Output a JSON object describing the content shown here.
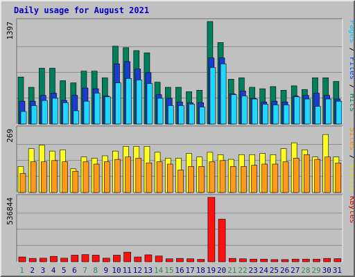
{
  "chart_data": {
    "type": "bar",
    "title": "Daily usage for August 2021",
    "title_color": "#0000c0",
    "categories": [
      "1",
      "2",
      "3",
      "4",
      "5",
      "6",
      "7",
      "8",
      "9",
      "10",
      "11",
      "12",
      "13",
      "14",
      "15",
      "16",
      "17",
      "18",
      "19",
      "20",
      "21",
      "22",
      "23",
      "24",
      "25",
      "26",
      "27",
      "28",
      "29",
      "30",
      "31"
    ],
    "weekend_days": [
      "1",
      "7",
      "8",
      "14",
      "15",
      "21",
      "22",
      "28",
      "29"
    ],
    "weekend_color": "#2e8b57",
    "weekday_color": "#000080",
    "grid": true,
    "panels": [
      {
        "id": "hits-files-pages",
        "ymax_label": "1397",
        "ymax": 1397,
        "right_labels": [
          {
            "text": "Pages",
            "color": "#00c8f0"
          },
          {
            "text": " / ",
            "color": "#000000"
          },
          {
            "text": "Files",
            "color": "#0040ff"
          },
          {
            "text": " / ",
            "color": "#000000"
          },
          {
            "text": "Hits",
            "color": "#008060"
          }
        ],
        "series": [
          {
            "name": "Hits",
            "color": "#00805a",
            "values": [
              640,
              500,
              760,
              760,
              590,
              560,
              720,
              720,
              630,
              1060,
              1040,
              1000,
              970,
              570,
              500,
              500,
              440,
              460,
              1397,
              1110,
              610,
              630,
              500,
              480,
              510,
              460,
              520,
              470,
              630,
              630,
              580
            ]
          },
          {
            "name": "Files",
            "color": "#1a3cd0",
            "values": [
              310,
              310,
              390,
              420,
              320,
              390,
              490,
              480,
              380,
              820,
              850,
              750,
              700,
              400,
              350,
              300,
              290,
              290,
              900,
              900,
              410,
              450,
              350,
              300,
              310,
              300,
              380,
              390,
              420,
              390,
              340
            ]
          },
          {
            "name": "Pages",
            "color": "#20d8ff",
            "values": [
              170,
              250,
              320,
              350,
              290,
              180,
              310,
              420,
              370,
              560,
              620,
              600,
              550,
              350,
              250,
              250,
              270,
              230,
              770,
              820,
              400,
              380,
              340,
              270,
              260,
              260,
              370,
              340,
              240,
              340,
              310
            ]
          }
        ]
      },
      {
        "id": "visits-sites",
        "ymax_label": "269",
        "ymax": 269,
        "right_labels": [
          {
            "text": "Sites",
            "color": "#ff8000"
          },
          {
            "text": " / ",
            "color": "#000000"
          },
          {
            "text": "Visits",
            "color": "#e0e000"
          }
        ],
        "series": [
          {
            "name": "Visits",
            "color": "#ffff22",
            "values": [
              110,
              185,
              200,
              175,
              180,
              100,
              150,
              145,
              155,
              175,
              195,
              195,
              195,
              170,
              145,
              145,
              165,
              150,
              170,
              160,
              140,
              160,
              160,
              165,
              160,
              185,
              210,
              180,
              150,
              245,
              150
            ]
          },
          {
            "name": "Sites",
            "color": "#ff9a1a",
            "values": [
              80,
              130,
              130,
              135,
              130,
              90,
              130,
              120,
              130,
              140,
              150,
              145,
              125,
              130,
              120,
              95,
              110,
              110,
              130,
              135,
              110,
              110,
              115,
              120,
              120,
              130,
              145,
              160,
              140,
              150,
              125
            ]
          }
        ]
      },
      {
        "id": "kbytes",
        "ymax_label": "536844",
        "ymax": 536844,
        "right_labels": [
          {
            "text": "KBytes",
            "color": "#e00000"
          }
        ],
        "series": [
          {
            "name": "KBytes",
            "color": "#ff1010",
            "values": [
              40000,
              28000,
              30000,
              45000,
              30000,
              55000,
              60000,
              55000,
              30000,
              55000,
              80000,
              40000,
              58000,
              48000,
              25000,
              28000,
              25000,
              20000,
              536844,
              355000,
              28000,
              25000,
              22000,
              22000,
              18000,
              18000,
              22000,
              22000,
              22000,
              28000,
              26000
            ]
          }
        ]
      }
    ]
  }
}
